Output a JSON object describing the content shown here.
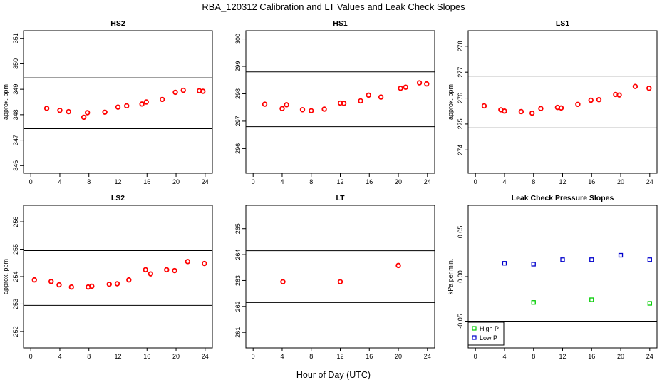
{
  "figure": {
    "title": "RBA_120312  Calibration and LT Values and Leak Check Slopes",
    "xlabel": "Hour of Day (UTC)"
  },
  "chart_data": [
    {
      "type": "scatter",
      "title": "HS2",
      "ylabel": "approx. ppm",
      "xlim": [
        -1,
        25
      ],
      "ylim": [
        345.7,
        351.3
      ],
      "xticks": [
        0,
        4,
        8,
        12,
        16,
        20,
        24
      ],
      "yticks": [
        346,
        347,
        348,
        349,
        350,
        351
      ],
      "hlines": [
        347.45,
        349.45
      ],
      "series": [
        {
          "color": "#ff0000",
          "x": [
            2.2,
            4.0,
            5.2,
            7.3,
            7.8,
            10.2,
            12.0,
            13.2,
            15.3,
            15.9,
            18.1,
            19.9,
            21.0,
            23.2,
            23.7
          ],
          "y": [
            348.25,
            348.17,
            348.12,
            347.9,
            348.08,
            348.1,
            348.3,
            348.35,
            348.42,
            348.5,
            348.6,
            348.88,
            348.96,
            348.94,
            348.92
          ]
        }
      ]
    },
    {
      "type": "scatter",
      "title": "HS1",
      "ylabel": "",
      "xlim": [
        -1,
        25
      ],
      "ylim": [
        295.1,
        300.3
      ],
      "xticks": [
        0,
        4,
        8,
        12,
        16,
        20,
        24
      ],
      "yticks": [
        296,
        297,
        298,
        299,
        300
      ],
      "hlines": [
        296.8,
        298.8
      ],
      "series": [
        {
          "color": "#ff0000",
          "x": [
            1.6,
            4.0,
            4.6,
            6.8,
            8.0,
            9.8,
            12.0,
            12.5,
            14.8,
            15.9,
            17.6,
            20.3,
            21.0,
            22.9,
            23.9
          ],
          "y": [
            297.62,
            297.46,
            297.6,
            297.42,
            297.38,
            297.44,
            297.66,
            297.65,
            297.74,
            297.95,
            297.88,
            298.2,
            298.24,
            298.4,
            298.36
          ]
        }
      ]
    },
    {
      "type": "scatter",
      "title": "LS1",
      "ylabel": "approx. ppm",
      "xlim": [
        -1,
        25
      ],
      "ylim": [
        273.1,
        278.6
      ],
      "xticks": [
        0,
        4,
        8,
        12,
        16,
        20,
        24
      ],
      "yticks": [
        274,
        275,
        276,
        277,
        278
      ],
      "hlines": [
        274.85,
        276.85
      ],
      "series": [
        {
          "color": "#ff0000",
          "x": [
            1.2,
            3.5,
            4.0,
            6.3,
            7.8,
            9.0,
            11.3,
            11.8,
            14.1,
            15.9,
            17.0,
            19.3,
            19.8,
            22.0,
            23.9
          ],
          "y": [
            275.7,
            275.55,
            275.5,
            275.48,
            275.42,
            275.6,
            275.64,
            275.62,
            275.76,
            275.92,
            275.94,
            276.14,
            276.12,
            276.45,
            276.38
          ]
        }
      ]
    },
    {
      "type": "scatter",
      "title": "LS2",
      "ylabel": "approx. ppm",
      "xlim": [
        -1,
        25
      ],
      "ylim": [
        251.4,
        256.6
      ],
      "xticks": [
        0,
        4,
        8,
        12,
        16,
        20,
        24
      ],
      "yticks": [
        252,
        253,
        254,
        255,
        256
      ],
      "hlines": [
        252.95,
        254.95
      ],
      "series": [
        {
          "color": "#ff0000",
          "x": [
            0.5,
            2.8,
            3.9,
            5.6,
            7.9,
            8.4,
            10.8,
            11.9,
            13.5,
            15.8,
            16.5,
            18.7,
            19.8,
            21.6,
            23.9
          ],
          "y": [
            253.88,
            253.82,
            253.7,
            253.62,
            253.62,
            253.65,
            253.72,
            253.74,
            253.88,
            254.25,
            254.1,
            254.25,
            254.22,
            254.55,
            254.48
          ]
        }
      ]
    },
    {
      "type": "scatter",
      "title": "LT",
      "ylabel": "",
      "xlim": [
        -1,
        25
      ],
      "ylim": [
        260.4,
        265.9
      ],
      "xticks": [
        0,
        4,
        8,
        12,
        16,
        20,
        24
      ],
      "yticks": [
        261,
        262,
        263,
        264,
        265
      ],
      "hlines": [
        262.15,
        264.15
      ],
      "series": [
        {
          "color": "#ff0000",
          "x": [
            4.1,
            12.0,
            20.0
          ],
          "y": [
            262.95,
            262.95,
            263.58
          ]
        }
      ]
    },
    {
      "type": "scatter",
      "title": "Leak Check Pressure Slopes",
      "ylabel": "kPa per min.",
      "xlim": [
        -1,
        25
      ],
      "ylim": [
        -0.08,
        0.08
      ],
      "xticks": [
        0,
        4,
        8,
        12,
        16,
        20,
        24
      ],
      "yticks": [
        -0.05,
        0.0,
        0.05
      ],
      "ytick_labels": [
        "-0.05",
        "0.00",
        "0.05"
      ],
      "hlines": [
        -0.05,
        0.05
      ],
      "legend": {
        "position": "bottom-left"
      },
      "series": [
        {
          "name": "High P",
          "color": "#00cc00",
          "x": [
            8.0,
            16.0,
            24.0
          ],
          "y": [
            -0.029,
            -0.026,
            -0.03
          ]
        },
        {
          "name": "Low P",
          "color": "#0000cc",
          "x": [
            4.0,
            8.0,
            12.0,
            16.0,
            20.0,
            24.0
          ],
          "y": [
            0.015,
            0.014,
            0.019,
            0.019,
            0.024,
            0.019
          ]
        }
      ]
    }
  ]
}
